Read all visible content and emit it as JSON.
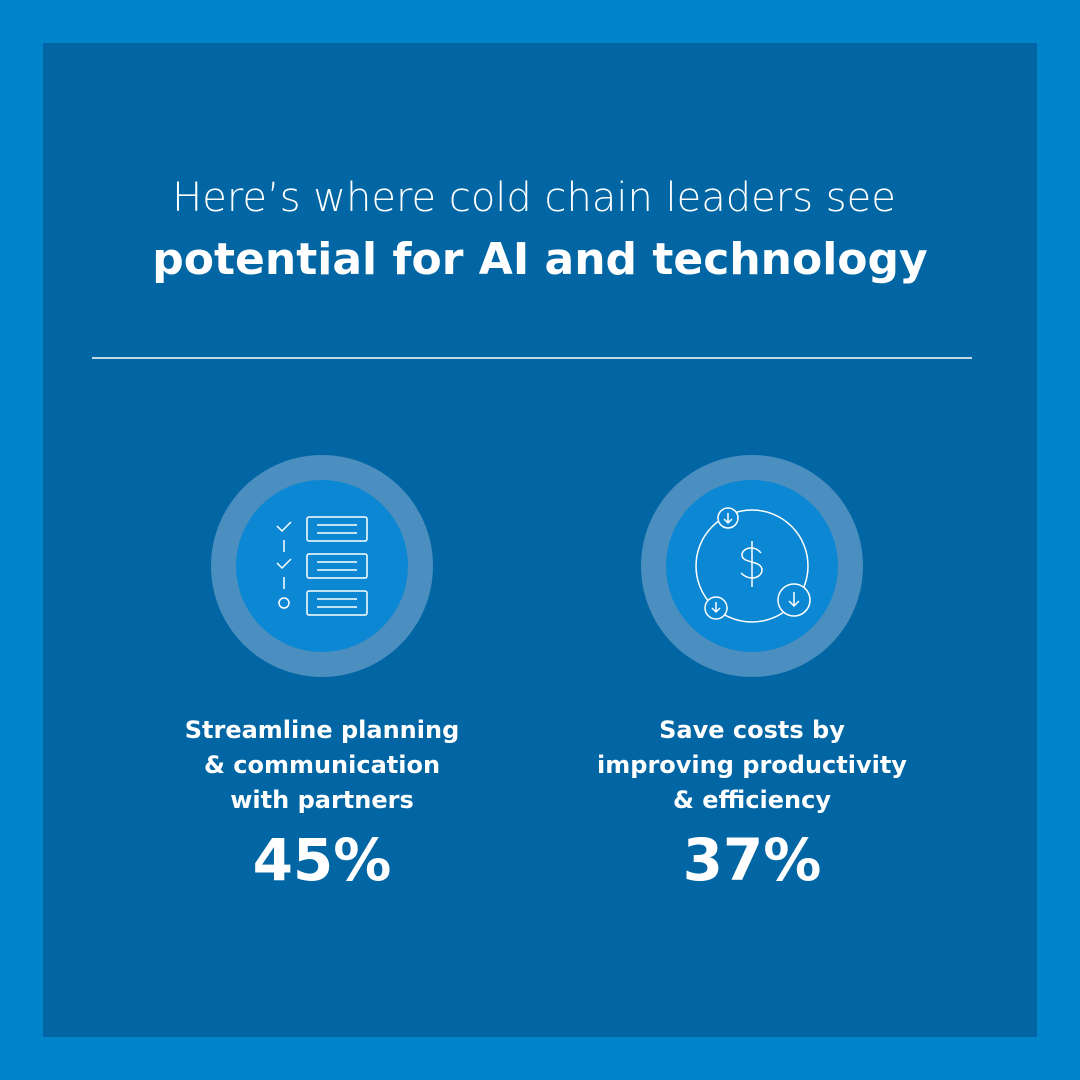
{
  "header": {
    "line1": "Here’s where cold chain leaders see",
    "line2": "potential for AI and technology"
  },
  "stats": [
    {
      "label_lines": [
        "Streamline planning",
        "& communication",
        "with partners"
      ],
      "value": "45%"
    },
    {
      "label_lines": [
        "Save costs by",
        "improving productivity",
        "& efficiency"
      ],
      "value": "37%"
    }
  ]
}
